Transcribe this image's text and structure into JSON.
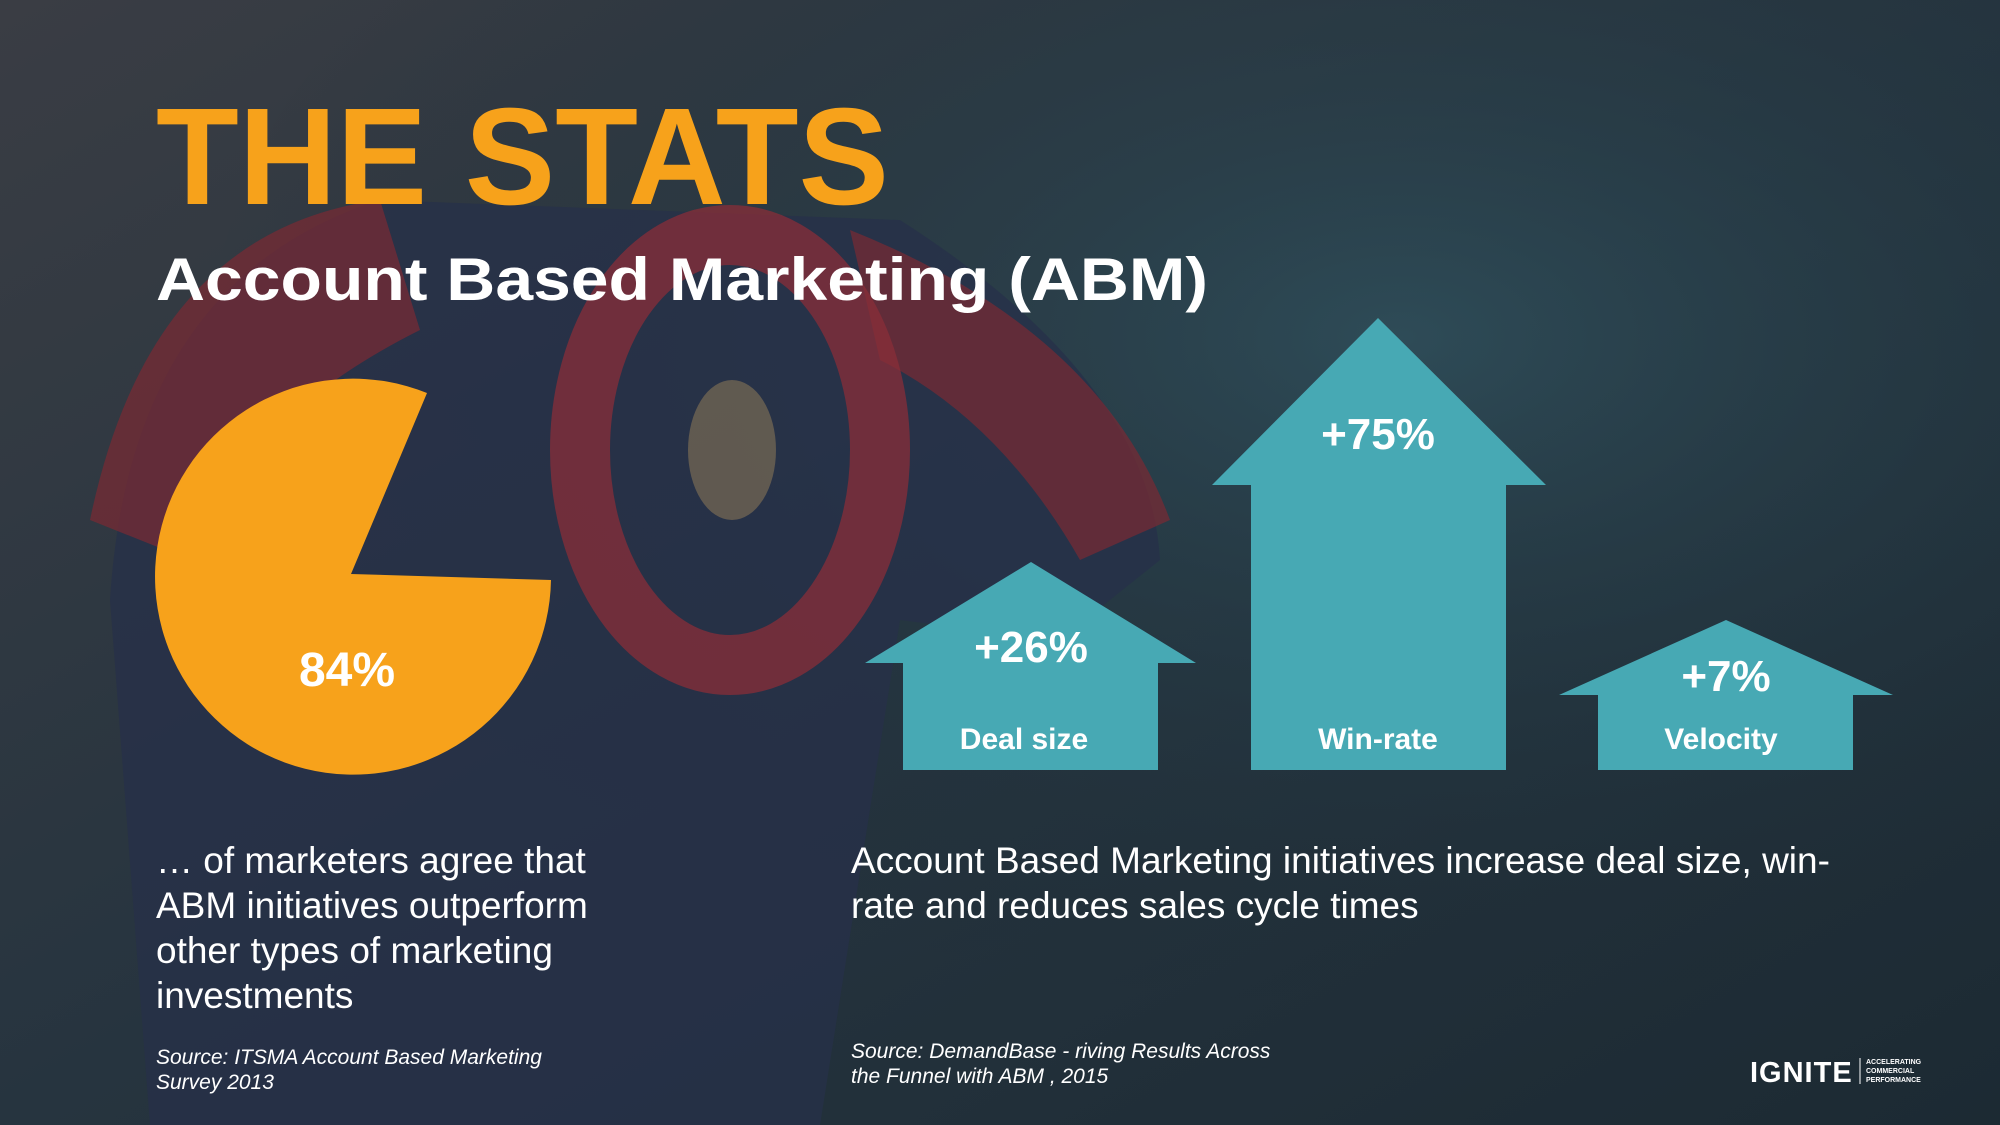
{
  "header": {
    "title": "THE STATS",
    "subtitle": "Account Based Marketing (ABM)"
  },
  "left": {
    "stat": "84%",
    "text": "… of marketers agree that ABM initiatives outperform other types of marketing investments",
    "source": "Source:  ITSMA Account  Based Marketing Survey 2013"
  },
  "right": {
    "arrows": [
      {
        "value": "+26%",
        "label": "Deal size"
      },
      {
        "value": "+75%",
        "label": "Win-rate"
      },
      {
        "value": "+7%",
        "label": "Velocity"
      }
    ],
    "text": "Account Based Marketing initiatives increase deal size, win-rate and reduces sales cycle times",
    "source": "Source:  DemandBase - riving Results Across the Funnel with ABM , 2015"
  },
  "logo": {
    "name": "IGNITE",
    "tagline": [
      "ACCELERATING",
      "COMMERCIAL",
      "PERFORMANCE"
    ]
  }
}
